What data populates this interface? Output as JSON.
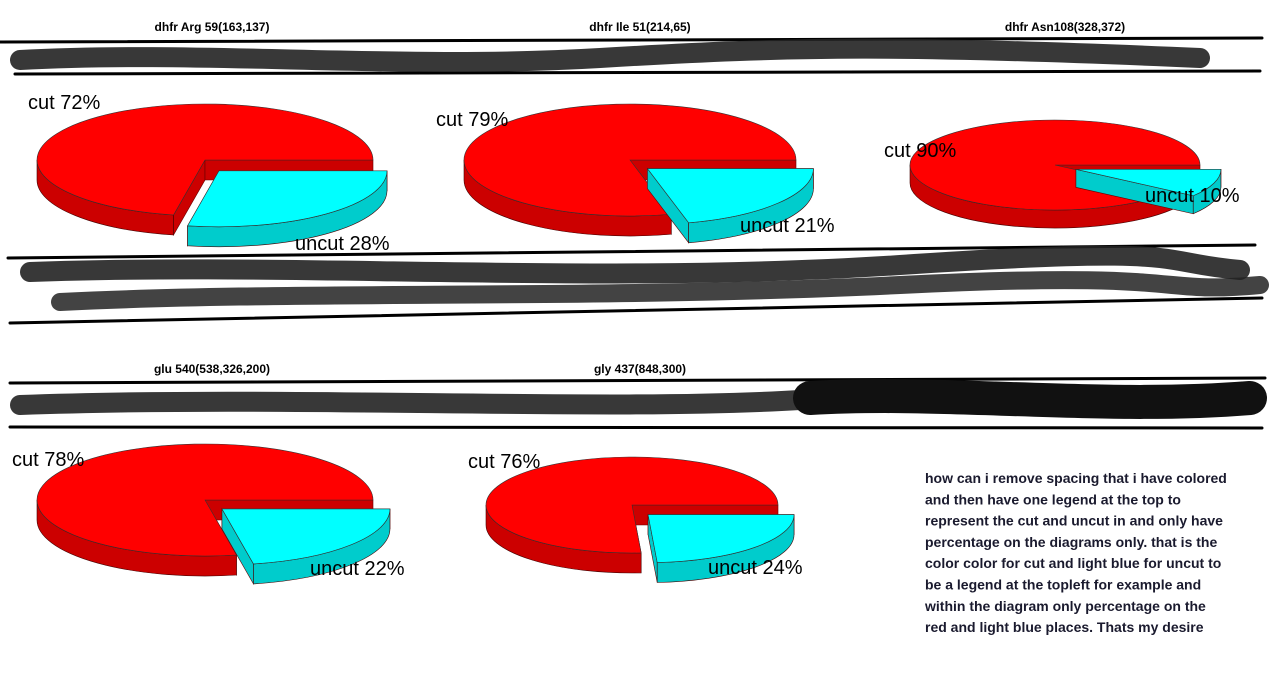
{
  "chart_data": [
    {
      "type": "pie",
      "title": "dhfr Arg 59(163,137)",
      "categories": [
        "cut",
        "uncut"
      ],
      "values": [
        72,
        28
      ],
      "value_labels": [
        "cut 72%",
        "uncut 28%"
      ],
      "colors": [
        "#ff0000",
        "#00ffff"
      ]
    },
    {
      "type": "pie",
      "title": "dhfr Ile 51(214,65)",
      "categories": [
        "cut",
        "uncut"
      ],
      "values": [
        79,
        21
      ],
      "value_labels": [
        "cut 79%",
        "uncut 21%"
      ],
      "colors": [
        "#ff0000",
        "#00ffff"
      ]
    },
    {
      "type": "pie",
      "title": "dhfr Asn108(328,372)",
      "categories": [
        "cut",
        "uncut"
      ],
      "values": [
        90,
        10
      ],
      "value_labels": [
        "cut 90%",
        "uncut 10%"
      ],
      "colors": [
        "#ff0000",
        "#00ffff"
      ]
    },
    {
      "type": "pie",
      "title": "glu 540(538,326,200)",
      "categories": [
        "cut",
        "uncut"
      ],
      "values": [
        78,
        22
      ],
      "value_labels": [
        "cut 78%",
        "uncut 22%"
      ],
      "colors": [
        "#ff0000",
        "#00ffff"
      ]
    },
    {
      "type": "pie",
      "title": "gly 437(848,300)",
      "categories": [
        "cut",
        "uncut"
      ],
      "values": [
        76,
        24
      ],
      "value_labels": [
        "cut 76%",
        "uncut 24%"
      ],
      "colors": [
        "#ff0000",
        "#00ffff"
      ]
    }
  ],
  "note": {
    "lines": [
      "how can i remove spacing that i have colored",
      "and then have one legend at the top  to",
      "represent the cut and uncut in and only have",
      "percentage on the diagrams only. that is the",
      "color color for cut and light blue for uncut to",
      "be a legend at the topleft for example and",
      "within the diagram only percentage on the",
      "red and light blue places. Thats my desire"
    ]
  }
}
